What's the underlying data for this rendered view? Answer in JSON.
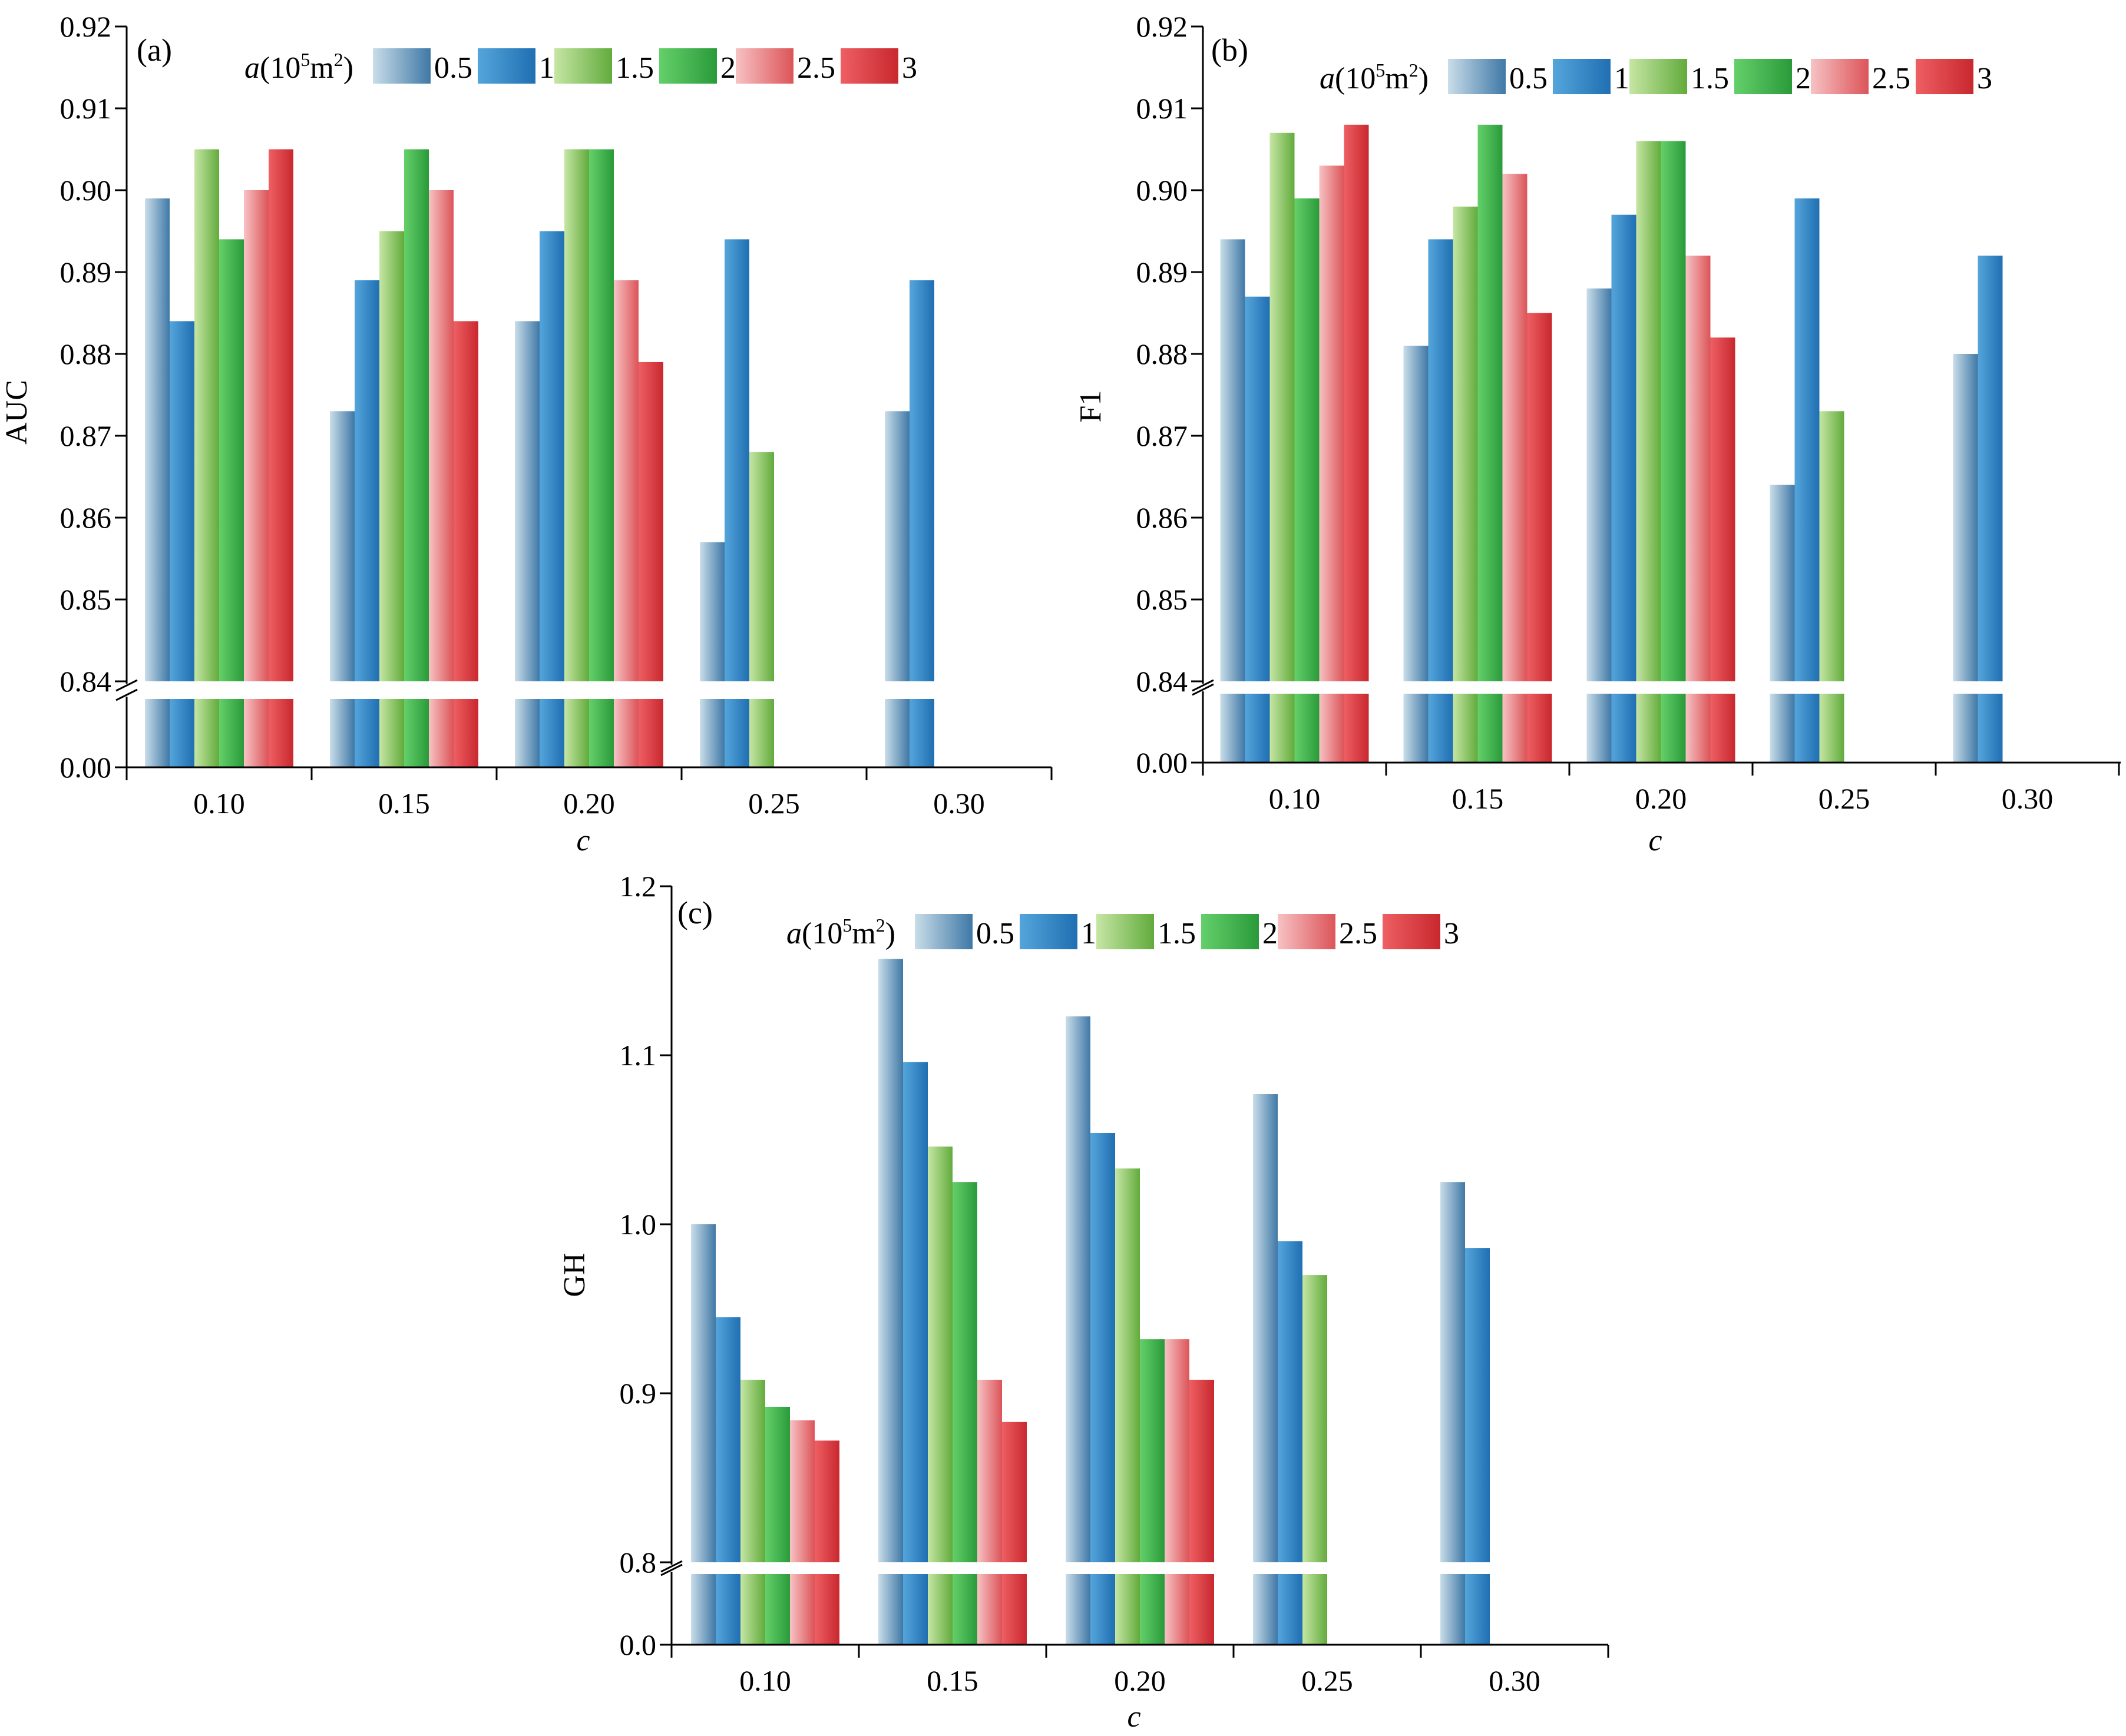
{
  "chart_data": [
    {
      "panel_label": "(a)",
      "type": "bar",
      "title": "",
      "xlabel": "c",
      "ylabel": "AUC",
      "categories": [
        "0.10",
        "0.15",
        "0.20",
        "0.25",
        "0.30"
      ],
      "ylim_upper": [
        0.84,
        0.92
      ],
      "ylim_lower": [
        0.0,
        0.0
      ],
      "yticks_upper": [
        "0.84",
        "0.85",
        "0.86",
        "0.87",
        "0.88",
        "0.89",
        "0.90",
        "0.91",
        "0.92"
      ],
      "ytick_lower": "0.00",
      "axis_break": true,
      "legend": {
        "title_prefix": "a",
        "title_unit": "(10",
        "title_exp": "5",
        "title_suffix": "m",
        "title_exp2": "2",
        "title_close": ")",
        "placement": "top"
      },
      "series": [
        {
          "name": "0.5",
          "values": [
            0.899,
            0.873,
            0.884,
            0.857,
            0.873
          ]
        },
        {
          "name": "1",
          "values": [
            0.884,
            0.889,
            0.895,
            0.894,
            0.889
          ]
        },
        {
          "name": "1.5",
          "values": [
            0.905,
            0.895,
            0.905,
            0.868,
            null
          ]
        },
        {
          "name": "2",
          "values": [
            0.894,
            0.905,
            0.905,
            null,
            null
          ]
        },
        {
          "name": "2.5",
          "values": [
            0.9,
            0.9,
            0.889,
            null,
            null
          ]
        },
        {
          "name": "3",
          "values": [
            0.905,
            0.884,
            0.879,
            null,
            null
          ]
        }
      ]
    },
    {
      "panel_label": "(b)",
      "type": "bar",
      "title": "",
      "xlabel": "c",
      "ylabel": "F1",
      "categories": [
        "0.10",
        "0.15",
        "0.20",
        "0.25",
        "0.30"
      ],
      "ylim_upper": [
        0.84,
        0.92
      ],
      "ylim_lower": [
        0.0,
        0.0
      ],
      "yticks_upper": [
        "0.84",
        "0.85",
        "0.86",
        "0.87",
        "0.88",
        "0.89",
        "0.90",
        "0.91",
        "0.92"
      ],
      "ytick_lower": "0.00",
      "axis_break": true,
      "legend": {
        "title_prefix": "a",
        "title_unit": "(10",
        "title_exp": "5",
        "title_suffix": "m",
        "title_exp2": "2",
        "title_close": ")",
        "placement": "top"
      },
      "series": [
        {
          "name": "0.5",
          "values": [
            0.894,
            0.881,
            0.888,
            0.864,
            0.88
          ]
        },
        {
          "name": "1",
          "values": [
            0.887,
            0.894,
            0.897,
            0.899,
            0.892
          ]
        },
        {
          "name": "1.5",
          "values": [
            0.907,
            0.898,
            0.906,
            0.873,
            null
          ]
        },
        {
          "name": "2",
          "values": [
            0.899,
            0.908,
            0.906,
            null,
            null
          ]
        },
        {
          "name": "2.5",
          "values": [
            0.903,
            0.902,
            0.892,
            null,
            null
          ]
        },
        {
          "name": "3",
          "values": [
            0.908,
            0.885,
            0.882,
            null,
            null
          ]
        }
      ]
    },
    {
      "panel_label": "(c)",
      "type": "bar",
      "title": "",
      "xlabel": "c",
      "ylabel": "GH",
      "categories": [
        "0.10",
        "0.15",
        "0.20",
        "0.25",
        "0.30"
      ],
      "ylim_upper": [
        0.8,
        1.2
      ],
      "ylim_lower": [
        0.0,
        0.0
      ],
      "yticks_upper": [
        "0.8",
        "0.9",
        "1.0",
        "1.1",
        "1.2"
      ],
      "ytick_lower": "0.0",
      "axis_break": true,
      "legend": {
        "title_prefix": "a",
        "title_unit": "(10",
        "title_exp": "5",
        "title_suffix": "m",
        "title_exp2": "2",
        "title_close": ")",
        "placement": "top"
      },
      "series": [
        {
          "name": "0.5",
          "values": [
            1.0,
            1.157,
            1.123,
            1.077,
            1.025
          ]
        },
        {
          "name": "1",
          "values": [
            0.945,
            1.096,
            1.054,
            0.99,
            0.986
          ]
        },
        {
          "name": "1.5",
          "values": [
            0.908,
            1.046,
            1.033,
            0.97,
            null
          ]
        },
        {
          "name": "2",
          "values": [
            0.892,
            1.025,
            0.932,
            null,
            null
          ]
        },
        {
          "name": "2.5",
          "values": [
            0.884,
            0.908,
            0.932,
            null,
            null
          ]
        },
        {
          "name": "3",
          "values": [
            0.872,
            0.883,
            0.908,
            null,
            null
          ]
        }
      ]
    }
  ],
  "series_colors": [
    {
      "light": "#c9dde9",
      "dark": "#3f78a6"
    },
    {
      "light": "#55a5dc",
      "dark": "#1f6fb2"
    },
    {
      "light": "#c6e6a4",
      "dark": "#62ab3c"
    },
    {
      "light": "#64d06a",
      "dark": "#2a9a3a"
    },
    {
      "light": "#f7c2c4",
      "dark": "#dc5458"
    },
    {
      "light": "#ee5f63",
      "dark": "#c8282e"
    }
  ]
}
